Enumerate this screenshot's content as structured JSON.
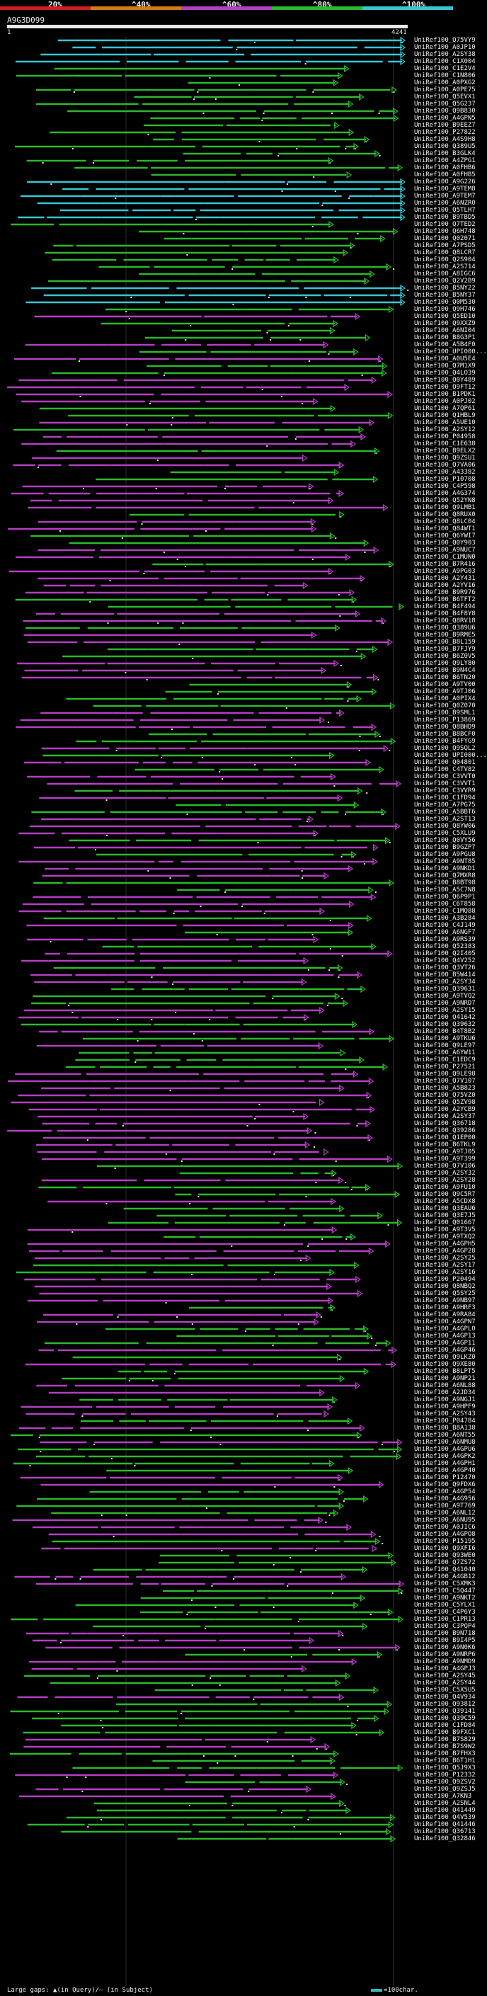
{
  "chart_data": {
    "type": "alignment-overview",
    "query_id": "A9G3D099",
    "query_start": 1,
    "query_end": 4241,
    "identity_legend": {
      "labels": [
        "20%",
        "^40%",
        "^60%",
        "^80%",
        "^100%"
      ],
      "colors": [
        "#cf1f1f",
        "#d07a1c",
        "#b33fc2",
        "#2db72d",
        "#39c5d0"
      ]
    },
    "footer": {
      "text": "Large gaps: ▲(in Query)/– (in Subject)",
      "scale_label": "=100char."
    },
    "hits": [
      "UniRef100_Q75VY9",
      "UniRef100_A0JP10",
      "UniRef100_A2SY38",
      "UniRef100_C1X004",
      "UniRef100_C1E2V4",
      "UniRef100_C1N806",
      "UniRef100_A0PXG2",
      "UniRef100_A0PE75",
      "UniRef100_Q5EVX1",
      "UniRef100_Q5G237",
      "UniRef100_Q9B830",
      "UniRef100_A4GPN5",
      "UniRef100_B9EEZ7",
      "UniRef100_P27822",
      "UniRef100_A4S9H8",
      "UniRef100_Q389U5",
      "UniRef100_B3GLK4",
      "UniRef100_A4ZPG1",
      "UniRef100_A0FHB6",
      "UniRef100_A0FHB5",
      "UniRef100_A9G226",
      "UniRef100_A9TEM8",
      "UniRef100_A9TEM7",
      "UniRef100_A6NZR0",
      "UniRef100_Q5TLH7",
      "UniRef100_B9TBD5",
      "UniRef100_Q7TED2",
      "UniRef100_Q6H748",
      "UniRef100_Q02071",
      "UniRef100_A7PSD5",
      "UniRef100_Q8LCR7",
      "UniRef100_Q2S904",
      "UniRef100_A2S714",
      "UniRef100_A8IGC6",
      "UniRef100_Q2V2B9",
      "UniRef100_B5NY22",
      "UniRef100_B5NY37",
      "UniRef100_Q0M530",
      "UniRef100_Q9H746",
      "UniRef100_Q5ED10",
      "UniRef100_Q9XXZ9",
      "UniRef100_A6NI04",
      "UniRef100_B8G3P1",
      "UniRef100_A5B4F0",
      "UniRef100_UPI000...",
      "UniRef100_A0U5E4",
      "UniRef100_Q7M1X9",
      "UniRef100_Q4LO39",
      "UniRef100_Q0Y489",
      "UniRef100_Q9FT12",
      "UniRef100_B1PDK1",
      "UniRef100_A0PJ02",
      "UniRef100_A7QP61",
      "UniRef100_Q1HBL9",
      "UniRef100_A5UE10",
      "UniRef100_A2SY12",
      "UniRef100_P04958",
      "UniRef100_C1E638",
      "UniRef100_B9ELX2",
      "UniRef100_Q9ZSU1",
      "UniRef100_Q7VA06",
      "UniRef100_A43382",
      "UniRef100_P10708",
      "UniRef100_C4P598",
      "UniRef100_A4G374",
      "UniRef100_Q52YN8",
      "UniRef100_Q9LMB1",
      "UniRef100_Q8RUX0",
      "UniRef100_Q8LC04",
      "UniRef100_Q84WT1",
      "UniRef100_Q6YWI7",
      "UniRef100_Q0Y903",
      "UniRef100_A9NUC7",
      "UniRef100_C1MUN0",
      "UniRef100_B7R416",
      "UniRef100_A9PG03",
      "UniRef100_A2Y431",
      "UniRef100_A2YV16",
      "UniRef100_B9R976",
      "UniRef100_B6TFT2",
      "UniRef100_B4F494",
      "UniRef100_B4F8Y8",
      "UniRef100_Q8RV18",
      "UniRef100_Q389U6",
      "UniRef100_B9RME5",
      "UniRef100_B8L159",
      "UniRef100_B7FJY9",
      "UniRef100_B6Z0V5",
      "UniRef100_Q9LY80",
      "UniRef100_B9N4C4",
      "UniRef100_B6TN20",
      "UniRef100_A9TV00",
      "UniRef100_A9TJ06",
      "UniRef100_A0PIX4",
      "UniRef100_Q0Z070",
      "UniRef100_B9SML1",
      "UniRef100_P13869",
      "UniRef100_Q8BHD9",
      "UniRef100_B8BCF0",
      "UniRef100_B4FYG9",
      "UniRef100_Q9SQL2",
      "UniRef100_UPI000...",
      "UniRef100_Q04801",
      "UniRef100_C4TV82",
      "UniRef100_C3VVT0",
      "UniRef100_C3VVT1",
      "UniRef100_C3VVR9",
      "UniRef100_C1FD94",
      "UniRef100_A7PG75",
      "UniRef100_A5BBT6",
      "UniRef100_A2ST13",
      "UniRef100_Q8YW06",
      "UniRef100_C5XLU9",
      "UniRef100_Q0VY56",
      "UniRef100_B9GZP7",
      "UniRef100_A9PGU8",
      "UniRef100_A9NT85",
      "UniRef100_A9NKD1",
      "UniRef100_Q7MXR8",
      "UniRef100_B8BT98",
      "UniRef100_A5C7N8",
      "UniRef100_Q6P9P1",
      "UniRef100_C6T858",
      "UniRef100_C1MQ88",
      "UniRef100_A3B284",
      "UniRef100_C4J149",
      "UniRef100_A6NGF7",
      "UniRef100_A9RS39",
      "UniRef100_Q52383",
      "UniRef100_Q2I405",
      "UniRef100_Q4V252",
      "UniRef100_Q3VT26",
      "UniRef100_B5W414",
      "UniRef100_A2SY34",
      "UniRef100_Q39631",
      "UniRef100_A9TVQ2",
      "UniRef100_A9NRD7",
      "UniRef100_A2SY15",
      "UniRef100_Q41642",
      "UniRef100_Q39632",
      "UniRef100_B4T8B2",
      "UniRef100_A9TKU6",
      "UniRef100_Q9LE97",
      "UniRef100_A6YW11",
      "UniRef100_C1EDC9",
      "UniRef100_P27521",
      "UniRef100_Q9LE98",
      "UniRef100_Q7V107",
      "UniRef100_A5B823",
      "UniRef100_Q75VZ0",
      "UniRef100_Q5ZV98",
      "UniRef100_A2YCB9",
      "UniRef100_A2SY37",
      "UniRef100_Q36718",
      "UniRef100_Q39286",
      "UniRef100_Q1EP00",
      "UniRef100_B6TKL9",
      "UniRef100_A9TJ05",
      "UniRef100_A9T399",
      "UniRef100_Q7V106",
      "UniRef100_A2SY32",
      "UniRef100_A2SY28",
      "UniRef100_A9FU10",
      "UniRef100_Q9C5R7",
      "UniRef100_A5CDX8",
      "UniRef100_Q3EAU6",
      "UniRef100_Q3E7J5",
      "UniRef100_Q01667",
      "UniRef100_A9T3V5",
      "UniRef100_A9TXQ2",
      "UniRef100_A4GPH5",
      "UniRef100_A4GP28",
      "UniRef100_A2SY25",
      "UniRef100_A2SY17",
      "UniRef100_A2SY16",
      "UniRef100_P20494",
      "UniRef100_Q8NBQ2",
      "UniRef100_Q5SY25",
      "UniRef100_A9NB97",
      "UniRef100_A9HRF3",
      "UniRef100_A9RA84",
      "UniRef100_A4GPN7",
      "UniRef100_A4GPL0",
      "UniRef100_A4GP13",
      "UniRef100_A4GP11",
      "UniRef100_A4GP46",
      "UniRef100_Q9LKZ0",
      "UniRef100_Q9XE80",
      "UniRef100_B8LPT5",
      "UniRef100_A9NP21",
      "UniRef100_A6NL88",
      "UniRef100_A2JD34",
      "UniRef100_A9NGJ1",
      "UniRef100_A9HPF9",
      "UniRef100_A2SY43",
      "UniRef100_P04784",
      "UniRef100_B8A138",
      "UniRef100_A6NT55",
      "UniRef100_A6NMU8",
      "UniRef100_A4GPU6",
      "UniRef100_A4GPK2",
      "UniRef100_A4GPH1",
      "UniRef100_A4GP40",
      "UniRef100_P12470",
      "UniRef100_Q9FDX6",
      "UniRef100_A4GP54",
      "UniRef100_A4G956",
      "UniRef100_A9T769",
      "UniRef100_A6NL12",
      "UniRef100_A6NU95",
      "UniRef100_A0JIC6",
      "UniRef100_A4GPO8",
      "UniRef100_P15195",
      "UniRef100_Q9XFI6",
      "UniRef100_Q93WE0",
      "UniRef100_Q7ZS72",
      "UniRef100_Q41040",
      "UniRef100_A4GB12",
      "UniRef100_C5XMK3",
      "UniRef100_C5Q447",
      "UniRef100_A9NKT2",
      "UniRef100_C5YLX1",
      "UniRef100_C4P6Y3",
      "UniRef100_C1PR13",
      "UniRef100_C3PQP4",
      "UniRef100_B9N718",
      "UniRef100_B9I4P5",
      "UniRef100_A9N0K6",
      "UniRef100_A9NRP6",
      "UniRef100_A9NMD9",
      "UniRef100_A4GPJ3",
      "UniRef100_A2SY45",
      "UniRef100_A2SY44",
      "UniRef100_C5X5U5",
      "UniRef100_Q4V934",
      "UniRef100_Q93812",
      "UniRef100_Q39141",
      "UniRef100_Q39C59",
      "UniRef100_C1FD84",
      "UniRef100_B9FXC1",
      "UniRef100_B7S829",
      "UniRef100_B7S9W2",
      "UniRef100_B7FHX3",
      "UniRef100_B6T1H1",
      "UniRef100_Q5J9X3",
      "UniRef100_P12332",
      "UniRef100_Q9ZSV2",
      "UniRef100_Q9ZSJ5",
      "UniRef100_A7KN3",
      "UniRef100_A2SNL4",
      "UniRef100_Q41449",
      "UniRef100_Q4V539",
      "UniRef100_Q41446",
      "UniRef100_Q36713",
      "UniRef100_Q32846"
    ]
  }
}
